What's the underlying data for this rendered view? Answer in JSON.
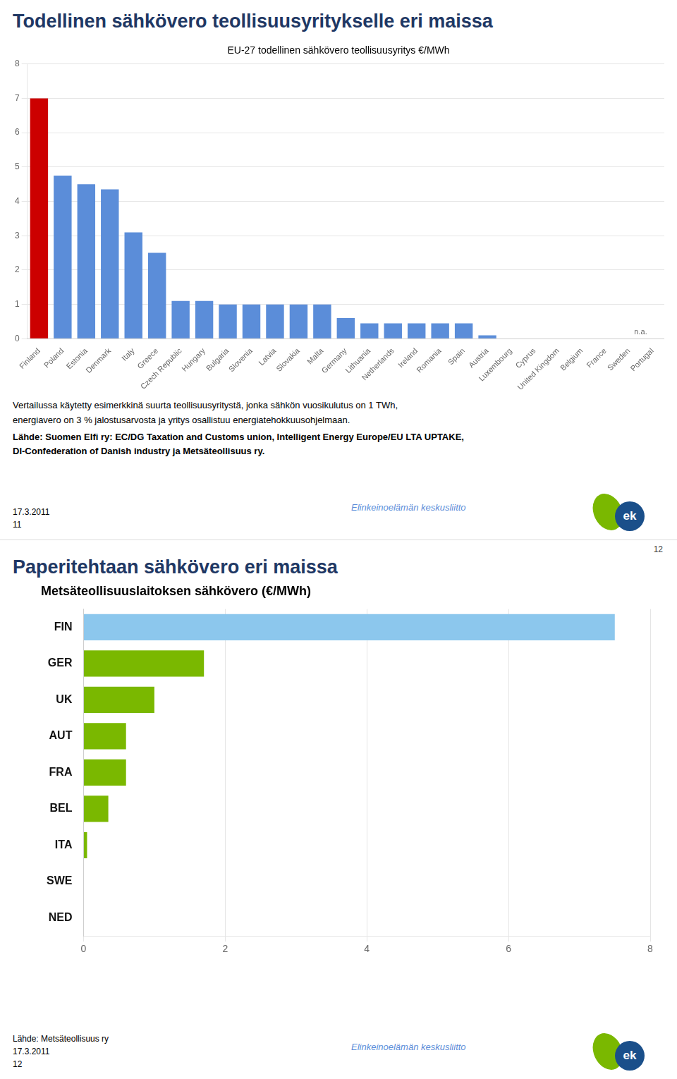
{
  "chart_data": [
    {
      "type": "bar",
      "page_title": "Todellinen sähkövero teollisuusyritykselle eri maissa",
      "title_color": "#1f3864",
      "title": "EU-27 todellinen sähkövero teollisuusyritys €/MWh",
      "categories": [
        "Finland",
        "Poland",
        "Estonia",
        "Denmark",
        "Italy",
        "Greece",
        "Czech Republic",
        "Hungary",
        "Bulgaria",
        "Slovenia",
        "Latvia",
        "Slovakia",
        "Malta",
        "Germany",
        "Lithuania",
        "Netherlands",
        "Ireland",
        "Romania",
        "Spain",
        "Austria",
        "Luxembourg",
        "Cyprus",
        "United Kingdom",
        "Belgium",
        "France",
        "Sweden",
        "Portugal"
      ],
      "values": [
        7.0,
        4.75,
        4.5,
        4.35,
        3.1,
        2.5,
        1.1,
        1.1,
        1.0,
        1.0,
        1.0,
        1.0,
        1.0,
        0.6,
        0.45,
        0.45,
        0.45,
        0.45,
        0.45,
        0.1,
        0.0,
        0.0,
        0.0,
        0.0,
        0.0,
        0.0,
        0.0
      ],
      "colors": [
        "#cc0000",
        "#5b8dd9",
        "#5b8dd9",
        "#5b8dd9",
        "#5b8dd9",
        "#5b8dd9",
        "#5b8dd9",
        "#5b8dd9",
        "#5b8dd9",
        "#5b8dd9",
        "#5b8dd9",
        "#5b8dd9",
        "#5b8dd9",
        "#5b8dd9",
        "#5b8dd9",
        "#5b8dd9",
        "#5b8dd9",
        "#5b8dd9",
        "#5b8dd9",
        "#5b8dd9",
        "#5b8dd9",
        "#5b8dd9",
        "#5b8dd9",
        "#5b8dd9",
        "#5b8dd9",
        "#5b8dd9",
        "#5b8dd9"
      ],
      "ylim": [
        0,
        8
      ],
      "yticks": [
        0,
        1,
        2,
        3,
        4,
        5,
        6,
        7,
        8
      ],
      "grid": true,
      "annotations": [
        "n.a."
      ],
      "body_text": "Vertailussa käytetty esimerkkinä suurta teollisuusyritystä, jonka sähkön vuosikulutus on  1 TWh,\nenergiavero on 3 % jalostusarvosta ja yritys osallistuu energiatehokkuusohjelmaan.",
      "source": "Lähde: Suomen Elfi ry: EC/DG Taxation and Customs union, Intelligent Energy Europe/EU LTA UPTAKE,\nDI-Confederation of Danish industry ja Metsäteollisuus ry.",
      "date": "17.3.2011",
      "page": "11",
      "footer": "Elinkeinoelämän keskusliitto",
      "footer_color": "#5b8dd9",
      "logo_text": "ek",
      "logo_colors": [
        "#7ab800",
        "#1a4f8a"
      ]
    },
    {
      "type": "bar",
      "orientation": "horizontal",
      "page_title": "Paperitehtaan sähkövero eri maissa",
      "title_color": "#1f3864",
      "page_number": "12",
      "title": "Metsäteollisuuslaitoksen sähkövero (€/MWh)",
      "categories": [
        "FIN",
        "GER",
        "UK",
        "AUT",
        "FRA",
        "BEL",
        "ITA",
        "SWE",
        "NED"
      ],
      "values": [
        7.5,
        1.7,
        1.0,
        0.6,
        0.6,
        0.35,
        0.05,
        0.0,
        0.0
      ],
      "colors": [
        "#8cc7ed",
        "#7ab800",
        "#7ab800",
        "#7ab800",
        "#7ab800",
        "#7ab800",
        "#7ab800",
        "#7ab800",
        "#7ab800"
      ],
      "xlim": [
        0,
        8
      ],
      "xticks": [
        0,
        2,
        4,
        6,
        8
      ],
      "grid": true,
      "source": "Lähde: Metsäteollisuus ry",
      "date": "17.3.2011",
      "page": "12",
      "footer": "Elinkeinoelämän keskusliitto",
      "footer_color": "#5b8dd9",
      "logo_text": "ek",
      "logo_colors": [
        "#7ab800",
        "#1a4f8a"
      ]
    }
  ]
}
